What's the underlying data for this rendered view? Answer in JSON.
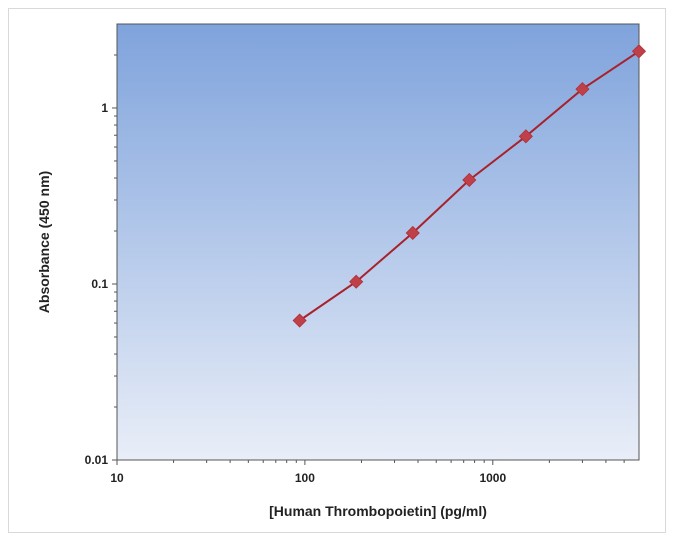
{
  "chart_data": {
    "type": "scatter",
    "title": "",
    "xlabel": "[Human Thrombopoietin] (pg/ml)",
    "ylabel": "Absorbance (450 nm)",
    "xscale": "log",
    "yscale": "log",
    "xlim": [
      10,
      6000
    ],
    "ylim": [
      0.01,
      3
    ],
    "x_ticks": [
      10,
      100,
      1000
    ],
    "x_tick_labels": [
      "10",
      "100",
      "1000"
    ],
    "y_ticks": [
      0.01,
      0.1,
      1
    ],
    "y_tick_labels": [
      "0.01",
      "0.1",
      "1"
    ],
    "grid": false,
    "legend": "none",
    "series": [
      {
        "x": [
          93.75,
          187.5,
          375,
          750,
          1500,
          3000,
          6000
        ],
        "y": [
          0.062,
          0.103,
          0.195,
          0.39,
          0.69,
          1.28,
          2.1
        ]
      }
    ],
    "fit_line": true,
    "colors": {
      "marker": "#c0404a",
      "line": "#a8222c",
      "plot_bg_top": "#7fa3dc",
      "plot_bg_bottom": "#e9eef8",
      "axis": "#555555"
    }
  }
}
